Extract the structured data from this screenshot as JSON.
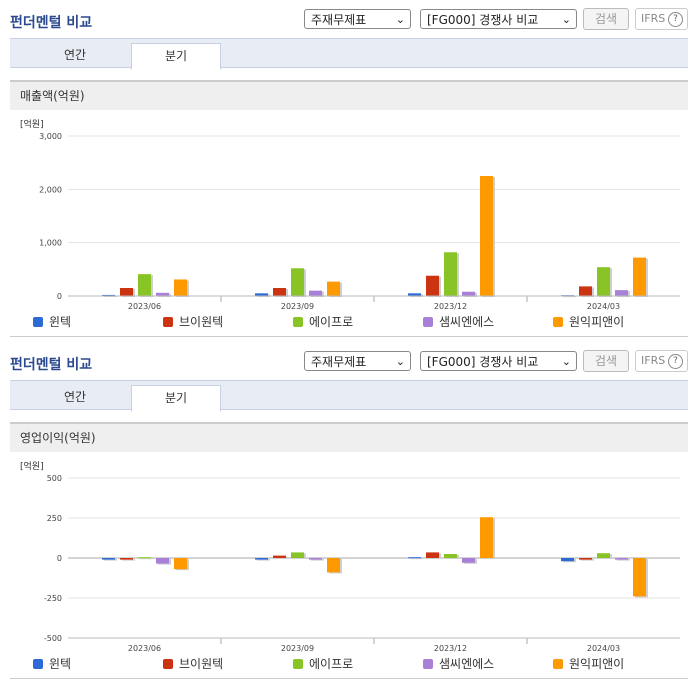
{
  "panels": [
    {
      "header": "펀더멘털 비교",
      "select1": "주재무제표",
      "select2": "[FG000] 경쟁사 비교",
      "search_label": "검색",
      "ifrs_label": "IFRS",
      "ifrs_help": "?",
      "tabs": [
        "연간",
        "분기"
      ],
      "active_tab": 1,
      "chart_title": "매출액(억원)",
      "unit": "[억원]"
    },
    {
      "header": "펀더멘털 비교",
      "select1": "주재무제표",
      "select2": "[FG000] 경쟁사 비교",
      "search_label": "검색",
      "ifrs_label": "IFRS",
      "ifrs_help": "?",
      "tabs": [
        "연간",
        "분기"
      ],
      "active_tab": 1,
      "chart_title": "영업이익(억원)",
      "unit": "[억원]"
    }
  ],
  "legend": [
    "윈텍",
    "브이원텍",
    "에이프로",
    "샘씨엔에스",
    "원익피앤이"
  ],
  "colors": [
    "#2e6ad6",
    "#cc3311",
    "#88c425",
    "#a880d8",
    "#ff9900"
  ],
  "chart_data": [
    {
      "type": "bar",
      "title": "매출액(억원)",
      "ylabel": "[억원]",
      "categories": [
        "2023/06",
        "2023/09",
        "2023/12",
        "2024/03"
      ],
      "ylim": [
        0,
        3000
      ],
      "yticks": [
        0,
        1000,
        2000,
        3000
      ],
      "ytick_labels": [
        "0",
        "1,000",
        "2,000",
        "3,000"
      ],
      "series": [
        {
          "name": "윈텍",
          "values": [
            20,
            50,
            50,
            15
          ]
        },
        {
          "name": "브이원텍",
          "values": [
            150,
            150,
            380,
            180
          ]
        },
        {
          "name": "에이프로",
          "values": [
            410,
            520,
            820,
            540
          ]
        },
        {
          "name": "샘씨엔에스",
          "values": [
            60,
            100,
            80,
            110
          ]
        },
        {
          "name": "원익피앤이",
          "values": [
            310,
            270,
            2250,
            720
          ]
        }
      ]
    },
    {
      "type": "bar",
      "title": "영업이익(억원)",
      "ylabel": "[억원]",
      "categories": [
        "2023/06",
        "2023/09",
        "2023/12",
        "2024/03"
      ],
      "ylim": [
        -500,
        500
      ],
      "yticks": [
        -500,
        -250,
        0,
        250,
        500
      ],
      "ytick_labels": [
        "-500",
        "-250",
        "0",
        "250",
        "500"
      ],
      "series": [
        {
          "name": "윈텍",
          "values": [
            -10,
            -10,
            5,
            -20
          ]
        },
        {
          "name": "브이원텍",
          "values": [
            -10,
            15,
            35,
            -10
          ]
        },
        {
          "name": "에이프로",
          "values": [
            5,
            35,
            25,
            30
          ]
        },
        {
          "name": "샘씨엔에스",
          "values": [
            -35,
            -10,
            -30,
            -10
          ]
        },
        {
          "name": "원익피앤이",
          "values": [
            -70,
            -90,
            255,
            -240
          ]
        }
      ]
    }
  ]
}
